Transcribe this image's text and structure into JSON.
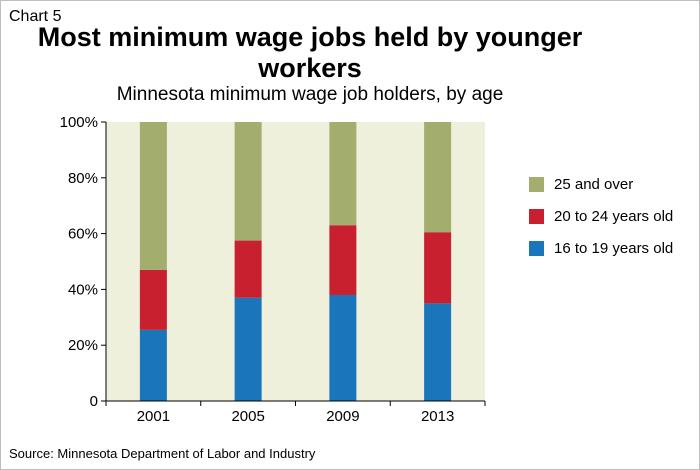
{
  "chart_label": "Chart 5",
  "chart_data": {
    "type": "bar",
    "stacked": true,
    "title": "Most minimum wage jobs held by younger workers",
    "subtitle": "Minnesota minimum wage job holders, by age",
    "categories": [
      "2001",
      "2005",
      "2009",
      "2013"
    ],
    "series": [
      {
        "name": "16 to 19 years old",
        "color": "#1a75bb",
        "values": [
          25.5,
          37,
          38,
          35
        ]
      },
      {
        "name": "20 to 24 years old",
        "color": "#c8202f",
        "values": [
          21.5,
          20.5,
          25,
          25.5
        ]
      },
      {
        "name": "25 and over",
        "color": "#a3ad6e",
        "values": [
          53,
          42.5,
          37,
          39.5
        ]
      }
    ],
    "ylim": [
      0,
      100
    ],
    "yticks": [
      "0",
      "20%",
      "40%",
      "60%",
      "80%",
      "100%"
    ],
    "plot_background": "#eff0dc",
    "legend_position": "right",
    "xlabel": "",
    "ylabel": ""
  },
  "source": "Source: Minnesota Department of Labor and Industry"
}
